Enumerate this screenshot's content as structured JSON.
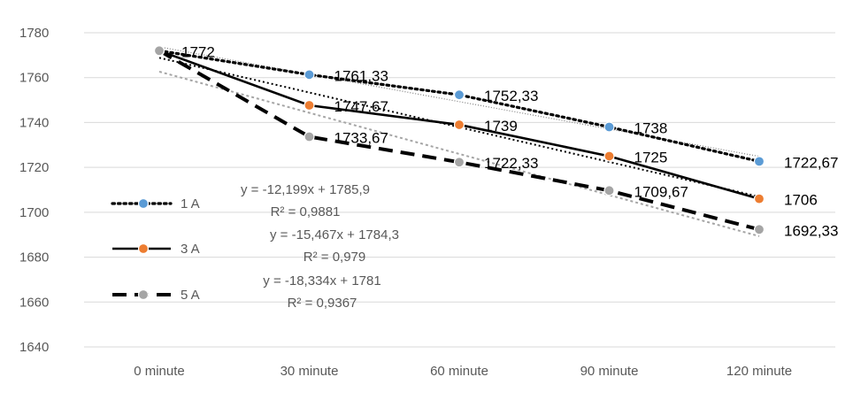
{
  "chart_data": {
    "type": "line",
    "categories": [
      "0 minute",
      "30 minute",
      "60 minute",
      "90 minute",
      "120 minute"
    ],
    "ylim": [
      1640,
      1780
    ],
    "yticks": [
      1640,
      1660,
      1680,
      1700,
      1720,
      1740,
      1760,
      1780
    ],
    "grid": "horizontal",
    "legend": "left",
    "series": [
      {
        "name": "1 A",
        "values": [
          1772,
          1761.33,
          1752.33,
          1738,
          1722.67
        ],
        "labels": [
          "1772",
          "1761,33",
          "1752,33",
          "1738",
          "1722,67"
        ],
        "line_style": "dotted",
        "line_color": "#000000",
        "marker_color": "#5b9bd5",
        "trendline": {
          "slope": -12.199,
          "intercept": 1785.9,
          "color": "#7f7f7f",
          "style": "dotted-thin"
        },
        "equation": "y = -12,199x + 1785,9",
        "r2": "R² = 0,9881"
      },
      {
        "name": "3 A",
        "values": [
          1772,
          1747.67,
          1739,
          1725,
          1706
        ],
        "labels": [
          "1772",
          "1747,67",
          "1739",
          "1725",
          "1706"
        ],
        "line_style": "solid",
        "line_color": "#000000",
        "marker_color": "#ed7d31",
        "trendline": {
          "slope": -15.467,
          "intercept": 1784.3,
          "color": "#000000",
          "style": "dotted"
        },
        "equation": "y = -15,467x + 1784,3",
        "r2": "R² = 0,979"
      },
      {
        "name": "5 A",
        "values": [
          1772,
          1733.67,
          1722.33,
          1709.67,
          1692.33
        ],
        "labels": [
          "1772",
          "1733,67",
          "1722,33",
          "1709,67",
          "1692,33"
        ],
        "line_style": "dashed",
        "line_color": "#000000",
        "marker_color": "#a5a5a5",
        "trendline": {
          "slope": -18.334,
          "intercept": 1781,
          "color": "#a5a5a5",
          "style": "dotted-light"
        },
        "equation": "y = -18,334x + 1781",
        "r2": "R² = 0,9367"
      }
    ]
  }
}
